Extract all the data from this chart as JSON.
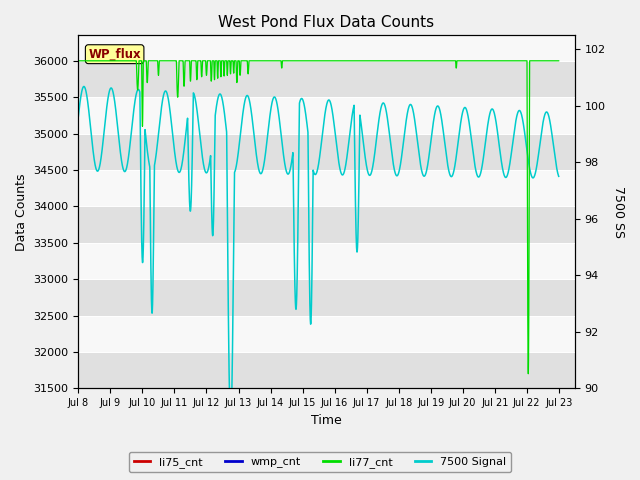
{
  "title": "West Pond Flux Data Counts",
  "xlabel": "Time",
  "ylabel_left": "Data Counts",
  "ylabel_right": "7500 SS",
  "ylim_left": [
    31500,
    36350
  ],
  "ylim_right": [
    90,
    102.5
  ],
  "bg_color": "#f0f0f0",
  "plot_bg_color": "#f8f8f8",
  "band_color": "#e0e0e0",
  "xtick_labels": [
    "Jul 8",
    "Jul 9",
    "Jul 10",
    "Jul 11",
    "Jul 12",
    "Jul 13",
    "Jul 14",
    "Jul 15",
    "Jul 16",
    "Jul 17",
    "Jul 18",
    "Jul 19",
    "Jul 20",
    "Jul 21",
    "Jul 22",
    "Jul 23"
  ],
  "yticks_left": [
    31500,
    32000,
    32500,
    33000,
    33500,
    34000,
    34500,
    35000,
    35500,
    36000
  ],
  "yticks_right": [
    90,
    92,
    94,
    96,
    98,
    100,
    102
  ],
  "li77_color": "#00dd00",
  "cyan_color": "#00cccc",
  "red_color": "#cc0000",
  "blue_color": "#0000cc",
  "wp_flux_bg": "#ffff99",
  "wp_flux_fg": "#880000"
}
